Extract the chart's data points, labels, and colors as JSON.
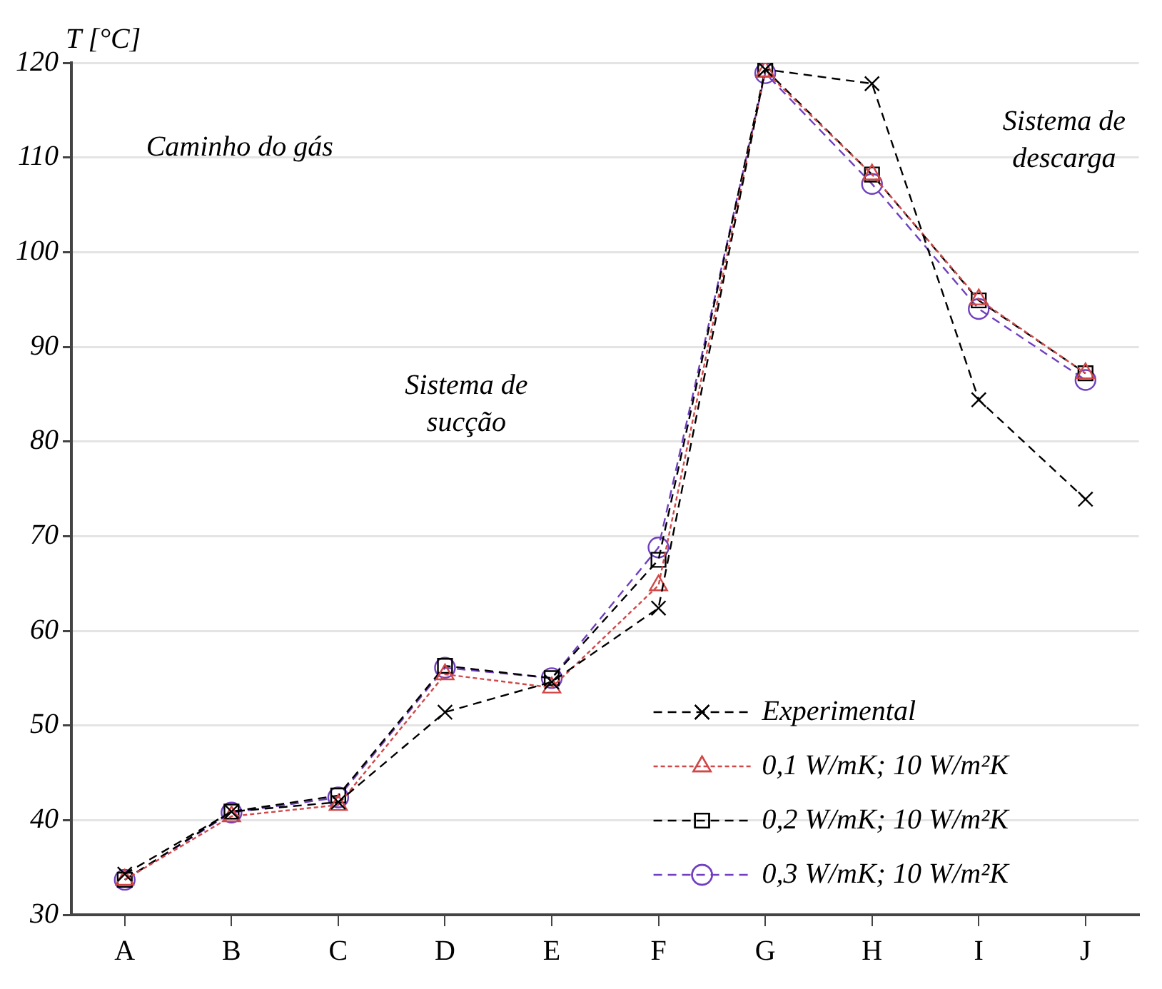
{
  "chart_data": {
    "type": "line",
    "ylabel": "T [°C]",
    "categories": [
      "A",
      "B",
      "C",
      "D",
      "E",
      "F",
      "G",
      "H",
      "I",
      "J"
    ],
    "series": [
      {
        "name": "Experimental",
        "color": "#000000",
        "marker": "cross",
        "line_style": "dashed",
        "values": [
          34.3,
          40.9,
          41.9,
          51.4,
          54.6,
          62.4,
          119.3,
          117.8,
          84.4,
          73.9
        ]
      },
      {
        "name": "0,1 W/mK; 10 W/m²K",
        "color": "#d04848",
        "marker": "triangle",
        "line_style": "dotted",
        "values": [
          33.7,
          40.4,
          41.6,
          55.4,
          54.0,
          64.8,
          119.1,
          108.2,
          95.0,
          87.2
        ]
      },
      {
        "name": "0,2 W/mK; 10 W/m²K",
        "color": "#000000",
        "marker": "square",
        "line_style": "dashed",
        "values": [
          33.7,
          40.9,
          42.6,
          56.3,
          55.0,
          67.5,
          119.3,
          108.2,
          94.9,
          87.2
        ]
      },
      {
        "name": "0,3 W/mK; 10 W/m²K",
        "color": "#7040c0",
        "marker": "circle",
        "line_style": "dashed",
        "values": [
          33.7,
          40.8,
          42.4,
          56.1,
          55.0,
          68.8,
          118.9,
          107.2,
          94.0,
          86.5
        ]
      }
    ],
    "ylim": [
      30,
      120
    ],
    "yticks": [
      30,
      40,
      50,
      60,
      70,
      80,
      90,
      100,
      110,
      120
    ],
    "grid": "y",
    "legend": "bottom right",
    "annotations": [
      "Caminho do gás",
      "Sistema de\nsucção",
      "Sistema de\ndescarga"
    ]
  }
}
